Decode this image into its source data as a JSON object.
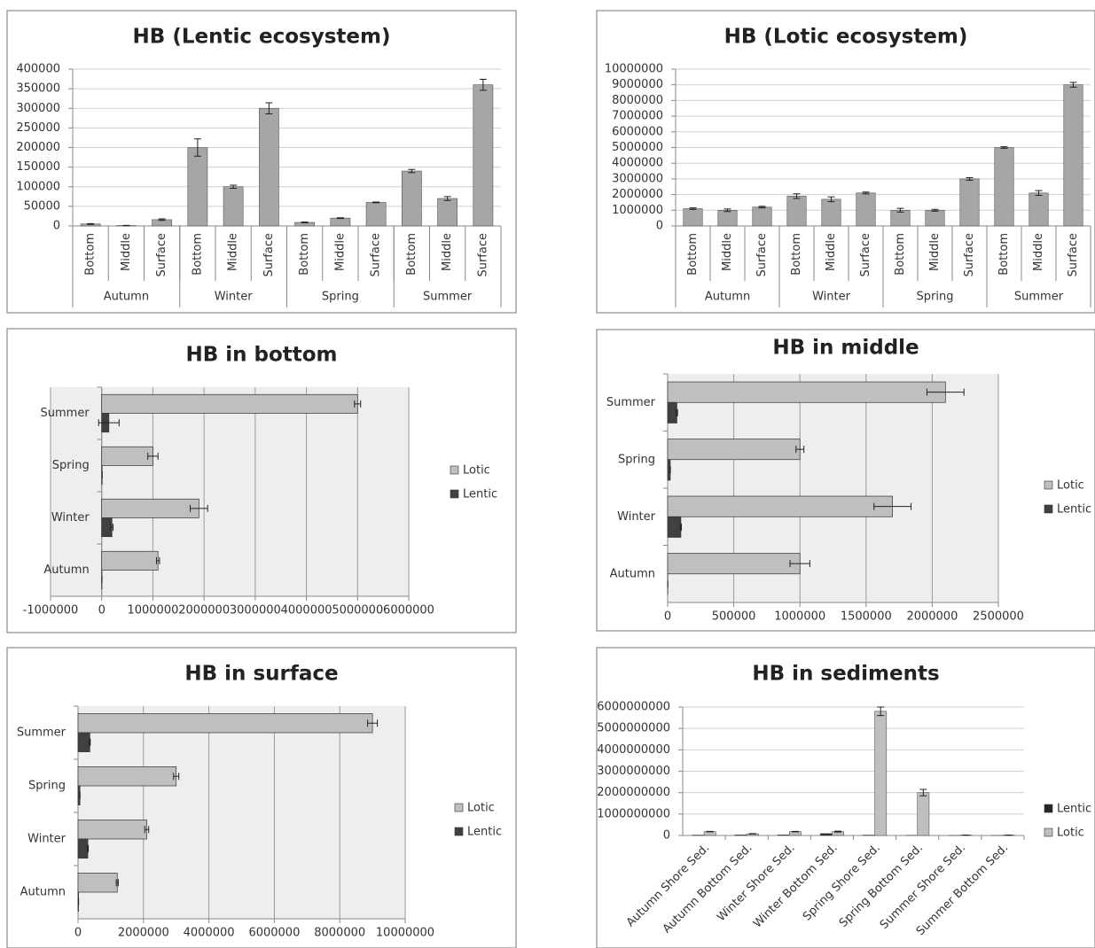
{
  "chart_data": [
    {
      "type": "bar",
      "title": "HB (Lentic ecosystem)",
      "categories": [
        "Bottom",
        "Middle",
        "Surface",
        "Bottom",
        "Middle",
        "Surface",
        "Bottom",
        "Middle",
        "Surface",
        "Bottom",
        "Middle",
        "Surface"
      ],
      "groups": [
        "Autumn",
        "Winter",
        "Spring",
        "Summer"
      ],
      "values": [
        5000,
        1000,
        16000,
        200000,
        100000,
        300000,
        9000,
        20000,
        60000,
        140000,
        70000,
        360000
      ],
      "errors": [
        1000,
        500,
        2000,
        22000,
        4000,
        14000,
        1000,
        1000,
        1000,
        4000,
        5000,
        14000
      ],
      "color": "#a6a6a6",
      "ylim": [
        0,
        400000
      ],
      "yticks": [
        0,
        50000,
        100000,
        150000,
        200000,
        250000,
        300000,
        350000,
        400000
      ],
      "grid": true
    },
    {
      "type": "bar",
      "title": "HB (Lotic ecosystem)",
      "categories": [
        "Bottom",
        "Middle",
        "Surface",
        "Bottom",
        "Middle",
        "Surface",
        "Bottom",
        "Middle",
        "Surface",
        "Bottom",
        "Middle",
        "Surface"
      ],
      "groups": [
        "Autumn",
        "Winter",
        "Spring",
        "Summer"
      ],
      "values": [
        1100000,
        1000000,
        1200000,
        1900000,
        1700000,
        2100000,
        1000000,
        1000000,
        3000000,
        5000000,
        2100000,
        9000000
      ],
      "errors": [
        50000,
        80000,
        50000,
        150000,
        150000,
        60000,
        120000,
        60000,
        80000,
        50000,
        150000,
        150000
      ],
      "color": "#a6a6a6",
      "ylim": [
        0,
        10000000
      ],
      "yticks": [
        0,
        1000000,
        2000000,
        3000000,
        4000000,
        5000000,
        6000000,
        7000000,
        8000000,
        9000000,
        10000000
      ],
      "grid": true
    },
    {
      "type": "barh",
      "title": "HB in bottom",
      "categories": [
        "Autumn",
        "Winter",
        "Spring",
        "Summer"
      ],
      "series": [
        {
          "name": "Lotic",
          "color": "#bfbfbf",
          "values": [
            1100000,
            1900000,
            1000000,
            5000000
          ],
          "errors": [
            30000,
            170000,
            100000,
            60000
          ]
        },
        {
          "name": "Lentic",
          "color": "#404040",
          "values": [
            5000,
            200000,
            9000,
            140000
          ],
          "errors": [
            1000,
            22000,
            1000,
            200000
          ]
        }
      ],
      "xlim": [
        -1000000,
        6000000
      ],
      "xticks": [
        -1000000,
        0,
        1000000,
        2000000,
        3000000,
        4000000,
        5000000,
        6000000
      ],
      "grid": true,
      "plot_background": "#eeeeee",
      "legend": "right"
    },
    {
      "type": "barh",
      "title": "HB in middle",
      "categories": [
        "Autumn",
        "Winter",
        "Spring",
        "Summer"
      ],
      "series": [
        {
          "name": "Lotic",
          "color": "#bfbfbf",
          "values": [
            1000000,
            1700000,
            1000000,
            2100000
          ],
          "errors": [
            75000,
            140000,
            30000,
            140000
          ]
        },
        {
          "name": "Lentic",
          "color": "#404040",
          "values": [
            1000,
            100000,
            20000,
            70000
          ],
          "errors": [
            500,
            4000,
            1000,
            5000
          ]
        }
      ],
      "xlim": [
        0,
        2500000
      ],
      "xticks": [
        0,
        500000,
        1000000,
        1500000,
        2000000,
        2500000
      ],
      "grid": true,
      "plot_background": "#eeeeee",
      "legend": "right"
    },
    {
      "type": "barh",
      "title": "HB in surface",
      "categories": [
        "Autumn",
        "Winter",
        "Spring",
        "Summer"
      ],
      "series": [
        {
          "name": "Lotic",
          "color": "#bfbfbf",
          "values": [
            1200000,
            2100000,
            3000000,
            9000000
          ],
          "errors": [
            30000,
            60000,
            80000,
            150000
          ]
        },
        {
          "name": "Lentic",
          "color": "#404040",
          "values": [
            16000,
            300000,
            60000,
            360000
          ],
          "errors": [
            2000,
            14000,
            1000,
            14000
          ]
        }
      ],
      "xlim": [
        0,
        10000000
      ],
      "xticks": [
        0,
        2000000,
        4000000,
        6000000,
        8000000,
        10000000
      ],
      "grid": true,
      "plot_background": "#eeeeee",
      "legend": "right"
    },
    {
      "type": "bar",
      "title": "HB in sediments",
      "categories": [
        "Autumn Shore Sed.",
        "Autumn Bottom Sed.",
        "Winter Shore Sed.",
        "Winter Bottom Sed.",
        "Spring Shore Sed.",
        "Spring Bottom Sed.",
        "Summer Shore Sed.",
        "Summer Bottom Sed."
      ],
      "series": [
        {
          "name": "Lentic",
          "color": "#262626",
          "values": [
            20000000,
            30000000,
            30000000,
            90000000,
            20000000,
            10000000,
            5000000,
            5000000
          ]
        },
        {
          "name": "Lotic",
          "color": "#bfbfbf",
          "values": [
            180000000,
            80000000,
            180000000,
            180000000,
            5800000000,
            2000000000,
            20000000,
            20000000
          ],
          "errors": [
            10000000,
            10000000,
            10000000,
            20000000,
            200000000,
            150000000,
            2000000,
            2000000
          ]
        }
      ],
      "ylim": [
        0,
        6000000000
      ],
      "yticks": [
        0,
        1000000000,
        2000000000,
        3000000000,
        4000000000,
        5000000000,
        6000000000
      ],
      "grid": true,
      "legend": "right"
    }
  ]
}
